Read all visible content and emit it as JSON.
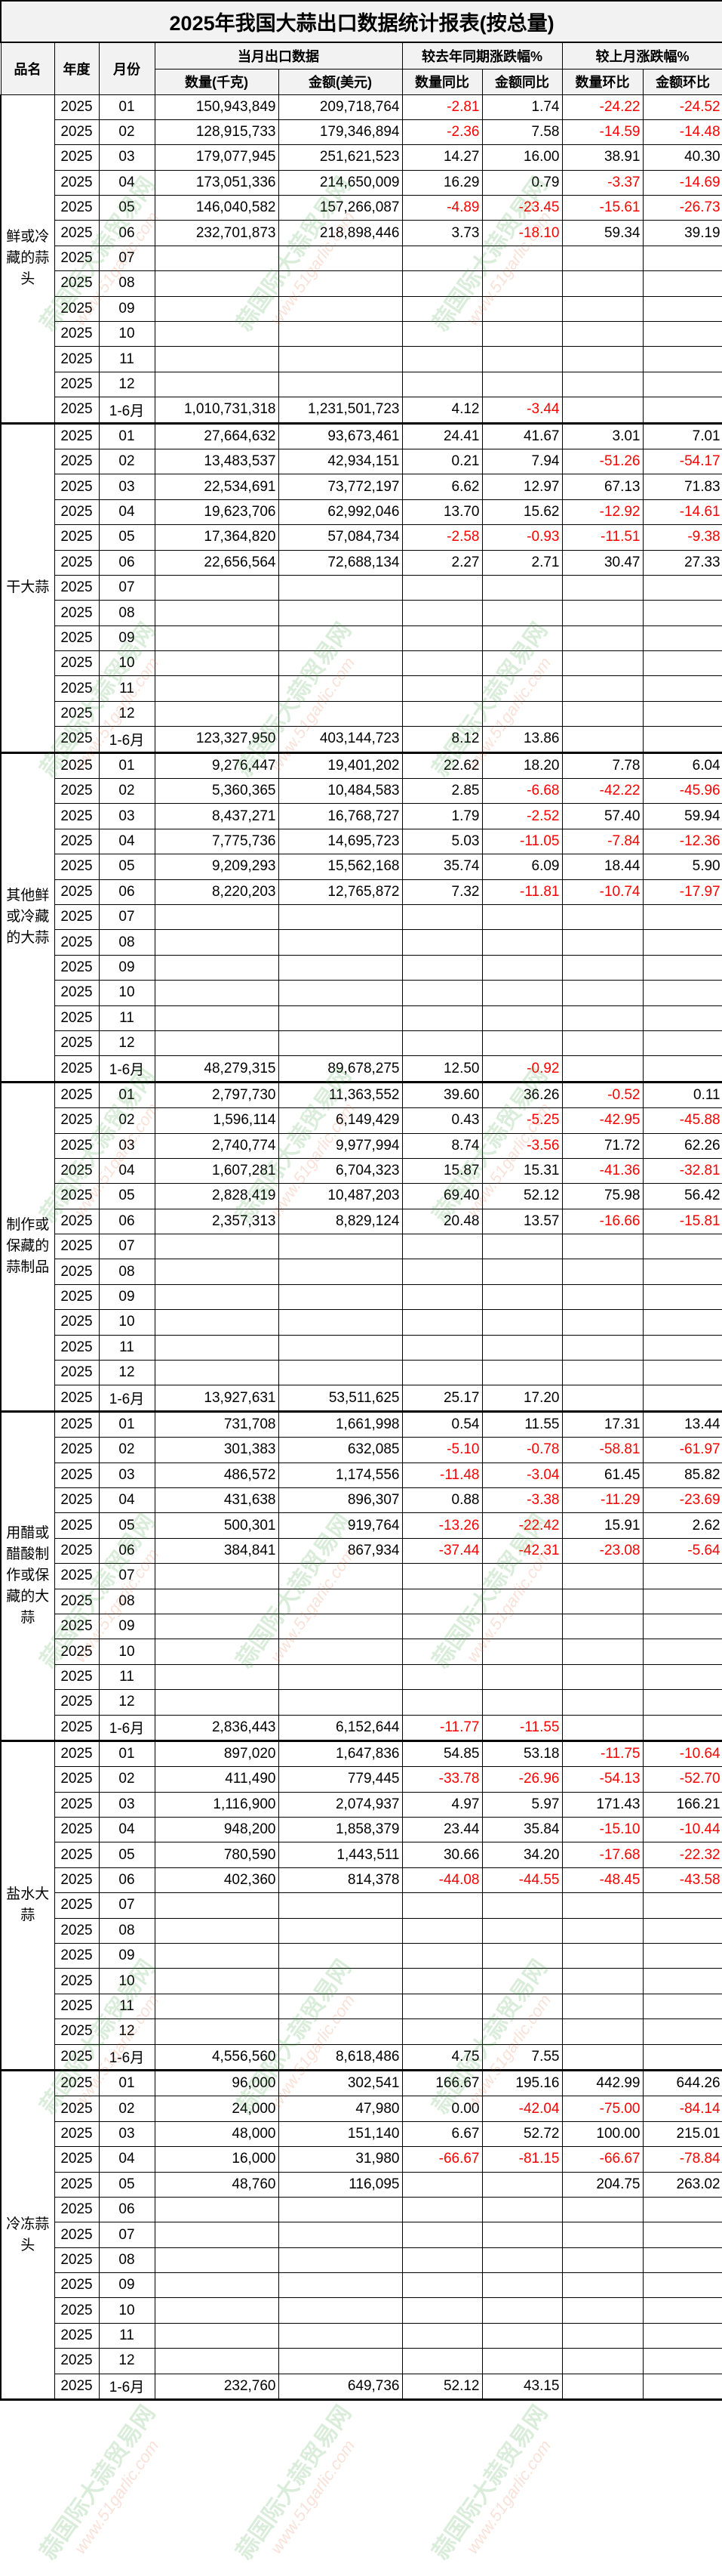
{
  "title": "2025年我国大蒜出口数据统计报表(按总量)",
  "headers": {
    "name": "品名",
    "year": "年度",
    "month": "月份",
    "group_current": "当月出口数据",
    "group_yoy": "较去年同期涨跌幅%",
    "group_mom": "较上月涨跌幅%",
    "qty": "数量(千克)",
    "amount": "金额(美元)",
    "qty_yoy": "数量同比",
    "amount_yoy": "金额同比",
    "qty_mom": "数量环比",
    "amount_mom": "金额环比"
  },
  "colors": {
    "negative": "#ff0000",
    "header_bg": "#f2f2f2"
  },
  "watermark": {
    "text": "蒜国际大蒜贸易网",
    "url": "www.51garlic.com"
  },
  "sections": [
    {
      "name": "鲜或冷藏的蒜头",
      "rows": [
        [
          "2025",
          "01",
          "150,943,849",
          "209,718,764",
          "-2.81",
          "1.74",
          "-24.22",
          "-24.52"
        ],
        [
          "2025",
          "02",
          "128,915,733",
          "179,346,894",
          "-2.36",
          "7.58",
          "-14.59",
          "-14.48"
        ],
        [
          "2025",
          "03",
          "179,077,945",
          "251,621,523",
          "14.27",
          "16.00",
          "38.91",
          "40.30"
        ],
        [
          "2025",
          "04",
          "173,051,336",
          "214,650,009",
          "16.29",
          "0.79",
          "-3.37",
          "-14.69"
        ],
        [
          "2025",
          "05",
          "146,040,582",
          "157,266,087",
          "-4.89",
          "-23.45",
          "-15.61",
          "-26.73"
        ],
        [
          "2025",
          "06",
          "232,701,873",
          "218,898,446",
          "3.73",
          "-18.10",
          "59.34",
          "39.19"
        ],
        [
          "2025",
          "07",
          "",
          "",
          "",
          "",
          "",
          ""
        ],
        [
          "2025",
          "08",
          "",
          "",
          "",
          "",
          "",
          ""
        ],
        [
          "2025",
          "09",
          "",
          "",
          "",
          "",
          "",
          ""
        ],
        [
          "2025",
          "10",
          "",
          "",
          "",
          "",
          "",
          ""
        ],
        [
          "2025",
          "11",
          "",
          "",
          "",
          "",
          "",
          ""
        ],
        [
          "2025",
          "12",
          "",
          "",
          "",
          "",
          "",
          ""
        ],
        [
          "2025",
          "1-6月",
          "1,010,731,318",
          "1,231,501,723",
          "4.12",
          "-3.44",
          "",
          ""
        ]
      ]
    },
    {
      "name": "干大蒜",
      "rows": [
        [
          "2025",
          "01",
          "27,664,632",
          "93,673,461",
          "24.41",
          "41.67",
          "3.01",
          "7.01"
        ],
        [
          "2025",
          "02",
          "13,483,537",
          "42,934,151",
          "0.21",
          "7.94",
          "-51.26",
          "-54.17"
        ],
        [
          "2025",
          "03",
          "22,534,691",
          "73,772,197",
          "6.62",
          "12.97",
          "67.13",
          "71.83"
        ],
        [
          "2025",
          "04",
          "19,623,706",
          "62,992,046",
          "13.70",
          "15.62",
          "-12.92",
          "-14.61"
        ],
        [
          "2025",
          "05",
          "17,364,820",
          "57,084,734",
          "-2.58",
          "-0.93",
          "-11.51",
          "-9.38"
        ],
        [
          "2025",
          "06",
          "22,656,564",
          "72,688,134",
          "2.27",
          "2.71",
          "30.47",
          "27.33"
        ],
        [
          "2025",
          "07",
          "",
          "",
          "",
          "",
          "",
          ""
        ],
        [
          "2025",
          "08",
          "",
          "",
          "",
          "",
          "",
          ""
        ],
        [
          "2025",
          "09",
          "",
          "",
          "",
          "",
          "",
          ""
        ],
        [
          "2025",
          "10",
          "",
          "",
          "",
          "",
          "",
          ""
        ],
        [
          "2025",
          "11",
          "",
          "",
          "",
          "",
          "",
          ""
        ],
        [
          "2025",
          "12",
          "",
          "",
          "",
          "",
          "",
          ""
        ],
        [
          "2025",
          "1-6月",
          "123,327,950",
          "403,144,723",
          "8.12",
          "13.86",
          "",
          ""
        ]
      ]
    },
    {
      "name": "其他鲜或冷藏的大蒜",
      "rows": [
        [
          "2025",
          "01",
          "9,276,447",
          "19,401,202",
          "22.62",
          "18.20",
          "7.78",
          "6.04"
        ],
        [
          "2025",
          "02",
          "5,360,365",
          "10,484,583",
          "2.85",
          "-6.68",
          "-42.22",
          "-45.96"
        ],
        [
          "2025",
          "03",
          "8,437,271",
          "16,768,727",
          "1.79",
          "-2.52",
          "57.40",
          "59.94"
        ],
        [
          "2025",
          "04",
          "7,775,736",
          "14,695,723",
          "5.03",
          "-11.05",
          "-7.84",
          "-12.36"
        ],
        [
          "2025",
          "05",
          "9,209,293",
          "15,562,168",
          "35.74",
          "6.09",
          "18.44",
          "5.90"
        ],
        [
          "2025",
          "06",
          "8,220,203",
          "12,765,872",
          "7.32",
          "-11.81",
          "-10.74",
          "-17.97"
        ],
        [
          "2025",
          "07",
          "",
          "",
          "",
          "",
          "",
          ""
        ],
        [
          "2025",
          "08",
          "",
          "",
          "",
          "",
          "",
          ""
        ],
        [
          "2025",
          "09",
          "",
          "",
          "",
          "",
          "",
          ""
        ],
        [
          "2025",
          "10",
          "",
          "",
          "",
          "",
          "",
          ""
        ],
        [
          "2025",
          "11",
          "",
          "",
          "",
          "",
          "",
          ""
        ],
        [
          "2025",
          "12",
          "",
          "",
          "",
          "",
          "",
          ""
        ],
        [
          "2025",
          "1-6月",
          "48,279,315",
          "89,678,275",
          "12.50",
          "-0.92",
          "",
          ""
        ]
      ]
    },
    {
      "name": "制作或保藏的蒜制品",
      "rows": [
        [
          "2025",
          "01",
          "2,797,730",
          "11,363,552",
          "39.60",
          "36.26",
          "-0.52",
          "0.11"
        ],
        [
          "2025",
          "02",
          "1,596,114",
          "6,149,429",
          "0.43",
          "-5.25",
          "-42.95",
          "-45.88"
        ],
        [
          "2025",
          "03",
          "2,740,774",
          "9,977,994",
          "8.74",
          "-3.56",
          "71.72",
          "62.26"
        ],
        [
          "2025",
          "04",
          "1,607,281",
          "6,704,323",
          "15.87",
          "15.31",
          "-41.36",
          "-32.81"
        ],
        [
          "2025",
          "05",
          "2,828,419",
          "10,487,203",
          "69.40",
          "52.12",
          "75.98",
          "56.42"
        ],
        [
          "2025",
          "06",
          "2,357,313",
          "8,829,124",
          "20.48",
          "13.57",
          "-16.66",
          "-15.81"
        ],
        [
          "2025",
          "07",
          "",
          "",
          "",
          "",
          "",
          ""
        ],
        [
          "2025",
          "08",
          "",
          "",
          "",
          "",
          "",
          ""
        ],
        [
          "2025",
          "09",
          "",
          "",
          "",
          "",
          "",
          ""
        ],
        [
          "2025",
          "10",
          "",
          "",
          "",
          "",
          "",
          ""
        ],
        [
          "2025",
          "11",
          "",
          "",
          "",
          "",
          "",
          ""
        ],
        [
          "2025",
          "12",
          "",
          "",
          "",
          "",
          "",
          ""
        ],
        [
          "2025",
          "1-6月",
          "13,927,631",
          "53,511,625",
          "25.17",
          "17.20",
          "",
          ""
        ]
      ]
    },
    {
      "name": "用醋或醋酸制作或保藏的大蒜",
      "rows": [
        [
          "2025",
          "01",
          "731,708",
          "1,661,998",
          "0.54",
          "11.55",
          "17.31",
          "13.44"
        ],
        [
          "2025",
          "02",
          "301,383",
          "632,085",
          "-5.10",
          "-0.78",
          "-58.81",
          "-61.97"
        ],
        [
          "2025",
          "03",
          "486,572",
          "1,174,556",
          "-11.48",
          "-3.04",
          "61.45",
          "85.82"
        ],
        [
          "2025",
          "04",
          "431,638",
          "896,307",
          "0.88",
          "-3.38",
          "-11.29",
          "-23.69"
        ],
        [
          "2025",
          "05",
          "500,301",
          "919,764",
          "-13.26",
          "-22.42",
          "15.91",
          "2.62"
        ],
        [
          "2025",
          "06",
          "384,841",
          "867,934",
          "-37.44",
          "-42.31",
          "-23.08",
          "-5.64"
        ],
        [
          "2025",
          "07",
          "",
          "",
          "",
          "",
          "",
          ""
        ],
        [
          "2025",
          "08",
          "",
          "",
          "",
          "",
          "",
          ""
        ],
        [
          "2025",
          "09",
          "",
          "",
          "",
          "",
          "",
          ""
        ],
        [
          "2025",
          "10",
          "",
          "",
          "",
          "",
          "",
          ""
        ],
        [
          "2025",
          "11",
          "",
          "",
          "",
          "",
          "",
          ""
        ],
        [
          "2025",
          "12",
          "",
          "",
          "",
          "",
          "",
          ""
        ],
        [
          "2025",
          "1-6月",
          "2,836,443",
          "6,152,644",
          "-11.77",
          "-11.55",
          "",
          ""
        ]
      ]
    },
    {
      "name": "盐水大蒜",
      "rows": [
        [
          "2025",
          "01",
          "897,020",
          "1,647,836",
          "54.85",
          "53.18",
          "-11.75",
          "-10.64"
        ],
        [
          "2025",
          "02",
          "411,490",
          "779,445",
          "-33.78",
          "-26.96",
          "-54.13",
          "-52.70"
        ],
        [
          "2025",
          "03",
          "1,116,900",
          "2,074,937",
          "4.97",
          "5.97",
          "171.43",
          "166.21"
        ],
        [
          "2025",
          "04",
          "948,200",
          "1,858,379",
          "23.44",
          "35.84",
          "-15.10",
          "-10.44"
        ],
        [
          "2025",
          "05",
          "780,590",
          "1,443,511",
          "30.66",
          "34.20",
          "-17.68",
          "-22.32"
        ],
        [
          "2025",
          "06",
          "402,360",
          "814,378",
          "-44.08",
          "-44.55",
          "-48.45",
          "-43.58"
        ],
        [
          "2025",
          "07",
          "",
          "",
          "",
          "",
          "",
          ""
        ],
        [
          "2025",
          "08",
          "",
          "",
          "",
          "",
          "",
          ""
        ],
        [
          "2025",
          "09",
          "",
          "",
          "",
          "",
          "",
          ""
        ],
        [
          "2025",
          "10",
          "",
          "",
          "",
          "",
          "",
          ""
        ],
        [
          "2025",
          "11",
          "",
          "",
          "",
          "",
          "",
          ""
        ],
        [
          "2025",
          "12",
          "",
          "",
          "",
          "",
          "",
          ""
        ],
        [
          "2025",
          "1-6月",
          "4,556,560",
          "8,618,486",
          "4.75",
          "7.55",
          "",
          ""
        ]
      ]
    },
    {
      "name": "冷冻蒜头",
      "rows": [
        [
          "2025",
          "01",
          "96,000",
          "302,541",
          "166.67",
          "195.16",
          "442.99",
          "644.26"
        ],
        [
          "2025",
          "02",
          "24,000",
          "47,980",
          "0.00",
          "-42.04",
          "-75.00",
          "-84.14"
        ],
        [
          "2025",
          "03",
          "48,000",
          "151,140",
          "6.67",
          "52.72",
          "100.00",
          "215.01"
        ],
        [
          "2025",
          "04",
          "16,000",
          "31,980",
          "-66.67",
          "-81.15",
          "-66.67",
          "-78.84"
        ],
        [
          "2025",
          "05",
          "48,760",
          "116,095",
          "",
          "",
          "204.75",
          "263.02"
        ],
        [
          "2025",
          "06",
          "",
          "",
          "",
          "",
          "",
          ""
        ],
        [
          "2025",
          "07",
          "",
          "",
          "",
          "",
          "",
          ""
        ],
        [
          "2025",
          "08",
          "",
          "",
          "",
          "",
          "",
          ""
        ],
        [
          "2025",
          "09",
          "",
          "",
          "",
          "",
          "",
          ""
        ],
        [
          "2025",
          "10",
          "",
          "",
          "",
          "",
          "",
          ""
        ],
        [
          "2025",
          "11",
          "",
          "",
          "",
          "",
          "",
          ""
        ],
        [
          "2025",
          "12",
          "",
          "",
          "",
          "",
          "",
          ""
        ],
        [
          "2025",
          "1-6月",
          "232,760",
          "649,736",
          "52.12",
          "43.15",
          "",
          ""
        ]
      ]
    }
  ]
}
